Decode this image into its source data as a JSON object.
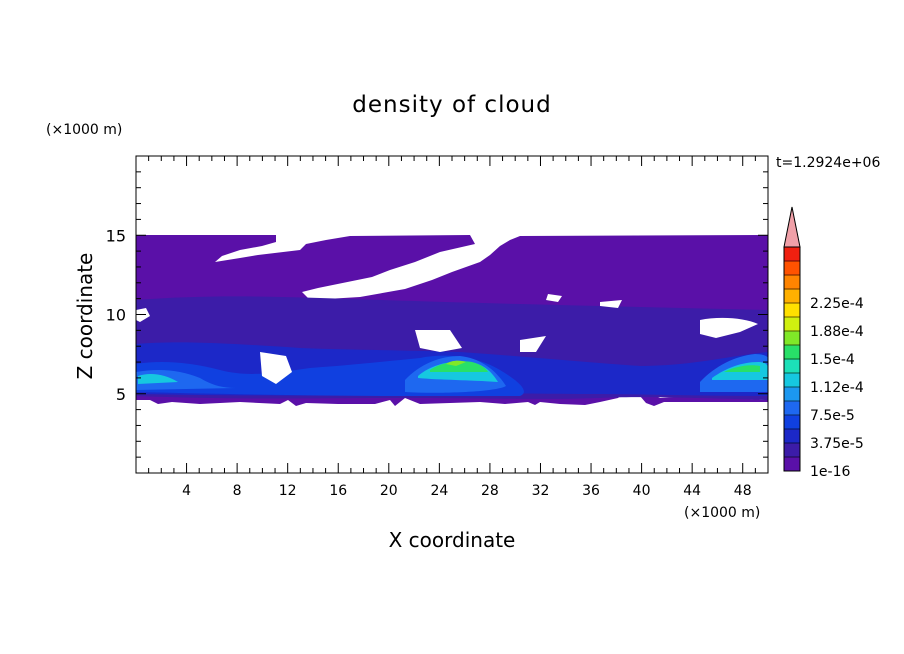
{
  "chart_data": {
    "type": "heatmap",
    "title": "density of cloud",
    "xlabel": "X coordinate",
    "ylabel": "Z coordinate",
    "x_unit": "(×1000 m)",
    "y_unit": "(×1000 m)",
    "time_label": "t=1.2924e+06",
    "xlim": [
      0,
      50
    ],
    "ylim": [
      0,
      20
    ],
    "x_ticks": [
      4,
      8,
      12,
      16,
      20,
      24,
      28,
      32,
      36,
      40,
      44,
      48
    ],
    "y_ticks": [
      5,
      10,
      15
    ],
    "colorbar": {
      "levels": [
        "1e-16",
        "3.75e-5",
        "7.5e-5",
        "1.12e-4",
        "1.5e-4",
        "1.88e-4",
        "2.25e-4"
      ],
      "colors": [
        "#5a10a8",
        "#3c1ca8",
        "#1c28c8",
        "#1040e0",
        "#1e68f0",
        "#1c98f0",
        "#16c8e0",
        "#1ce0b8",
        "#28e068",
        "#80e828",
        "#d0f010",
        "#ffe000",
        "#ffb000",
        "#ff8400",
        "#ff5200",
        "#f02010"
      ],
      "overflow_color": "#f0a0a8"
    }
  }
}
